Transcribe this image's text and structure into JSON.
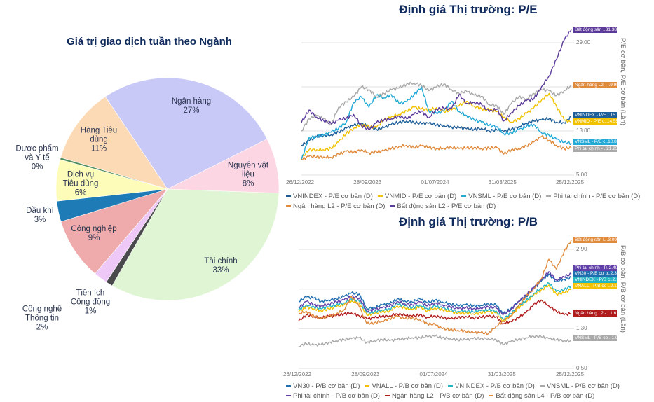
{
  "chart_data": [
    {
      "type": "pie",
      "title": "Giá trị giao dịch tuần theo Ngành",
      "slices": [
        {
          "name": "Tài chính",
          "value": 33,
          "label": "33%",
          "color": "#dff5d4"
        },
        {
          "name": "Tiện ích Cộng đồng",
          "value": 1,
          "label": "1%",
          "color": "#4a4a4c"
        },
        {
          "name": "Công nghệ Thông tin",
          "value": 2,
          "label": "2%",
          "color": "#eec8f6"
        },
        {
          "name": "Công nghiệp",
          "value": 9,
          "label": "9%",
          "color": "#efabab"
        },
        {
          "name": "Dầu khí",
          "value": 3,
          "label": "3%",
          "color": "#1f7bb5"
        },
        {
          "name": "Dịch vụ Tiêu dùng",
          "value": 6,
          "label": "6%",
          "color": "#fdfdb9"
        },
        {
          "name": "Dược phẩm và Y tế",
          "value": 0,
          "label": "0%",
          "color": "#4d8c5c"
        },
        {
          "name": "Hàng Tiêu dùng",
          "value": 11,
          "label": "11%",
          "color": "#fddab6"
        },
        {
          "name": "Ngân hàng",
          "value": 27,
          "label": "27%",
          "color": "#c9c9f8"
        },
        {
          "name": "Nguyên vật liệu",
          "value": 8,
          "label": "8%",
          "color": "#fdd6e4"
        }
      ]
    },
    {
      "type": "line",
      "title": "Định giá Thị trường: P/E",
      "ylabel": "P/E cơ bản, P/E cơ bản (Lần)",
      "yticks": [
        "5.00",
        "13.00",
        "29.00"
      ],
      "ylim": [
        5,
        33
      ],
      "grid": [
        5,
        13,
        21,
        29
      ],
      "xticks": [
        "26/12/2022",
        "28/09/2023",
        "01/07/2024",
        "31/03/2025",
        "25/12/2025"
      ],
      "x": [
        "2022-12-26",
        "2023-01-26",
        "2023-02-26",
        "2023-03-26",
        "2023-04-26",
        "2023-05-26",
        "2023-06-26",
        "2023-07-26",
        "2023-08-26",
        "2023-09-26",
        "2023-10-26",
        "2023-11-26",
        "2023-12-26",
        "2024-01-26",
        "2024-02-26",
        "2024-03-26",
        "2024-04-26",
        "2024-05-26",
        "2024-06-26",
        "2024-07-26",
        "2024-08-26",
        "2024-09-26",
        "2024-10-26",
        "2024-11-26",
        "2024-12-26",
        "2025-01-26",
        "2025-02-26",
        "2025-03-26",
        "2025-04-26",
        "2025-05-26",
        "2025-06-26",
        "2025-07-26",
        "2025-08-26",
        "2025-09-26",
        "2025-10-26",
        "2025-11-26",
        "2025-12-25"
      ],
      "series": [
        {
          "name": "VNINDEX - P/E cơ bản (D)",
          "color": "#1f5f9a",
          "tag": "VNINDEX - P/E ..",
          "last": "15.54",
          "values": [
            10.4,
            11.2,
            12.0,
            12.2,
            12.3,
            12.8,
            13.5,
            14.0,
            14.4,
            13.8,
            13.3,
            13.6,
            14.2,
            14.6,
            14.8,
            14.6,
            14.3,
            14.4,
            14.1,
            14.0,
            13.7,
            13.6,
            13.4,
            13.3,
            13.5,
            13.0,
            13.2,
            12.9,
            13.3,
            13.8,
            14.4,
            14.8,
            15.0,
            15.2,
            14.6,
            14.5,
            15.54
          ]
        },
        {
          "name": "VNMID - P/E cơ bản (D)",
          "color": "#f2c200",
          "tag": "VNMID - P/E c..",
          "last": "14.55",
          "values": [
            8.0,
            9.6,
            9.6,
            9.6,
            9.8,
            11.0,
            12.5,
            13.5,
            14.2,
            13.8,
            13.6,
            15.0,
            15.6,
            16.0,
            16.6,
            17.3,
            17.0,
            16.8,
            17.2,
            16.5,
            16.8,
            17.6,
            18.4,
            17.5,
            17.0,
            16.8,
            16.5,
            15.5,
            14.6,
            15.2,
            16.2,
            17.2,
            18.6,
            19.8,
            17.5,
            15.0,
            14.55
          ]
        },
        {
          "name": "VNSML - P/E cơ bản (D)",
          "color": "#22a9d6",
          "tag": "VNSML - P/E c..",
          "last": "10.82",
          "values": [
            7.8,
            11.8,
            12.0,
            12.2,
            12.8,
            13.5,
            14.6,
            18.2,
            19.2,
            17.3,
            19.5,
            19.0,
            19.6,
            18.0,
            18.3,
            19.5,
            21.0,
            16.6,
            16.2,
            16.6,
            18.4,
            16.5,
            15.8,
            15.0,
            14.6,
            14.0,
            13.8,
            12.5,
            12.6,
            13.2,
            13.8,
            14.2,
            12.7,
            12.2,
            11.5,
            10.9,
            10.82
          ]
        },
        {
          "name": "Phi tài chính - P/E cơ bản (D)",
          "color": "#a9a9a9",
          "tag": "Phi tài chính - ..",
          "last": "21.25",
          "values": [
            13.0,
            15.2,
            15.8,
            15.2,
            14.2,
            17.3,
            18.3,
            19.2,
            21.0,
            20.5,
            19.2,
            19.8,
            20.5,
            20.8,
            21.5,
            21.7,
            21.3,
            20.3,
            21.0,
            21.5,
            20.5,
            19.8,
            20.2,
            19.5,
            19.3,
            17.8,
            17.6,
            16.0,
            18.0,
            19.2,
            18.8,
            19.8,
            20.5,
            20.3,
            19.4,
            20.3,
            21.25
          ]
        },
        {
          "name": "Ngân hàng L2 - P/E cơ bản (D)",
          "color": "#e08a3c",
          "tag": "Ngân hàng L2 - ..",
          "last": "9.95",
          "values": [
            7.8,
            8.4,
            8.3,
            8.3,
            8.2,
            8.8,
            9.3,
            9.1,
            9.6,
            9.0,
            9.2,
            9.4,
            9.8,
            10.2,
            10.4,
            10.0,
            10.3,
            10.0,
            9.8,
            9.9,
            10.0,
            9.8,
            9.9,
            10.0,
            9.8,
            9.9,
            10.0,
            8.8,
            9.6,
            9.8,
            10.3,
            11.0,
            12.0,
            11.3,
            10.4,
            9.8,
            9.95
          ]
        },
        {
          "name": "Bất động sản L2 - P/E cơ bản (D)",
          "color": "#5b3a9a",
          "tag": "Bất động sản ..",
          "last": "31.38",
          "values": [
            14.5,
            16.8,
            15.5,
            14.9,
            14.3,
            15.0,
            15.3,
            16.0,
            14.0,
            13.2,
            14.5,
            15.0,
            15.2,
            15.7,
            15.2,
            16.0,
            16.6,
            15.4,
            17.0,
            17.1,
            17.0,
            19.6,
            18.0,
            18.2,
            17.8,
            16.5,
            17.0,
            14.8,
            16.3,
            17.6,
            18.5,
            18.8,
            21.0,
            23.0,
            26.0,
            29.5,
            31.38
          ]
        }
      ]
    },
    {
      "type": "line",
      "title": "Định giá Thị trường: P/B",
      "ylabel": "P/B cơ bản, P/B cơ bản (Lần)",
      "yticks": [
        "0.50",
        "1.30",
        "2.90"
      ],
      "ylim": [
        0.5,
        3.2
      ],
      "grid": [
        0.5,
        1.3,
        2.1,
        2.9
      ],
      "xticks": [
        "26/12/2022",
        "28/09/2023",
        "01/07/2024",
        "31/03/2025",
        "25/12/2025"
      ],
      "x": [
        "2022-12-26",
        "2023-01-26",
        "2023-02-26",
        "2023-03-26",
        "2023-04-26",
        "2023-05-26",
        "2023-06-26",
        "2023-07-26",
        "2023-08-26",
        "2023-09-26",
        "2023-10-26",
        "2023-11-26",
        "2023-12-26",
        "2024-01-26",
        "2024-02-26",
        "2024-03-26",
        "2024-04-26",
        "2024-05-26",
        "2024-06-26",
        "2024-07-26",
        "2024-08-26",
        "2024-09-26",
        "2024-10-26",
        "2024-11-26",
        "2024-12-26",
        "2025-01-26",
        "2025-02-26",
        "2025-03-26",
        "2025-04-26",
        "2025-05-26",
        "2025-06-26",
        "2025-07-26",
        "2025-08-26",
        "2025-09-26",
        "2025-10-26",
        "2025-11-26",
        "2025-12-25"
      ],
      "series": [
        {
          "name": "VN30 - P/B cơ bản (D)",
          "color": "#1f6fb0",
          "tag": "VN30 - P/B cơ b..",
          "last": "2.33",
          "values": [
            1.85,
            1.94,
            1.92,
            1.85,
            1.88,
            1.9,
            1.95,
            2.02,
            2.0,
            1.71,
            1.72,
            1.78,
            1.8,
            1.9,
            1.86,
            1.84,
            1.9,
            1.82,
            1.88,
            1.84,
            1.8,
            1.76,
            1.78,
            1.76,
            1.77,
            1.8,
            1.78,
            1.6,
            1.7,
            1.85,
            1.95,
            2.1,
            2.25,
            2.4,
            2.25,
            2.3,
            2.33
          ]
        },
        {
          "name": "VNALL - P/B cơ bản (D)",
          "color": "#f2c200",
          "tag": "VNALL - P/B co ..",
          "last": "2.10",
          "values": [
            1.64,
            1.74,
            1.7,
            1.66,
            1.7,
            1.74,
            1.78,
            1.86,
            1.82,
            1.58,
            1.6,
            1.64,
            1.66,
            1.76,
            1.72,
            1.68,
            1.74,
            1.66,
            1.72,
            1.68,
            1.64,
            1.61,
            1.62,
            1.6,
            1.62,
            1.64,
            1.62,
            1.46,
            1.56,
            1.72,
            1.83,
            1.97,
            2.08,
            2.18,
            2.0,
            2.02,
            2.1
          ]
        },
        {
          "name": "VNINDEX - P/B cơ bản (D)",
          "color": "#26b5c5",
          "tag": "VNINDEX - P/B c..",
          "last": "2.17",
          "values": [
            1.68,
            1.78,
            1.74,
            1.7,
            1.74,
            1.78,
            1.82,
            1.9,
            1.86,
            1.62,
            1.64,
            1.68,
            1.7,
            1.8,
            1.76,
            1.72,
            1.78,
            1.7,
            1.76,
            1.72,
            1.68,
            1.65,
            1.66,
            1.64,
            1.66,
            1.68,
            1.66,
            1.5,
            1.6,
            1.75,
            1.86,
            2.0,
            2.12,
            2.22,
            2.05,
            2.08,
            2.17
          ]
        },
        {
          "name": "VNSML - P/B cơ bản (D)",
          "color": "#a9a9a9",
          "tag": "VNSML - P/B co ..",
          "last": "1.05",
          "values": [
            0.95,
            1.0,
            0.97,
            0.98,
            1.02,
            1.06,
            1.08,
            1.1,
            1.12,
            1.02,
            1.06,
            1.08,
            1.06,
            1.08,
            1.1,
            1.12,
            1.12,
            1.14,
            1.15,
            1.12,
            1.1,
            1.08,
            1.08,
            1.1,
            1.1,
            1.1,
            1.08,
            0.98,
            1.04,
            1.08,
            1.12,
            1.15,
            1.14,
            1.1,
            1.08,
            1.06,
            1.05
          ]
        },
        {
          "name": "Phi tài chính - P/B cơ bản (D)",
          "color": "#6040a8",
          "tag": "Phi tài chính - P..",
          "last": "2.40",
          "values": [
            1.72,
            1.85,
            1.78,
            1.76,
            1.8,
            1.84,
            1.88,
            1.95,
            1.92,
            1.66,
            1.68,
            1.72,
            1.75,
            1.85,
            1.8,
            1.78,
            1.84,
            1.76,
            1.82,
            1.78,
            1.74,
            1.7,
            1.72,
            1.7,
            1.72,
            1.74,
            1.72,
            1.58,
            1.68,
            1.85,
            1.98,
            2.12,
            2.28,
            2.45,
            2.28,
            2.35,
            2.4
          ]
        },
        {
          "name": "Ngân hàng L2 - P/B cơ bản (D)",
          "color": "#b01c1c",
          "tag": "Ngân hàng L2 - ..",
          "last": "1.61",
          "values": [
            1.45,
            1.58,
            1.54,
            1.52,
            1.55,
            1.56,
            1.6,
            1.62,
            1.56,
            1.5,
            1.52,
            1.55,
            1.56,
            1.6,
            1.57,
            1.55,
            1.58,
            1.53,
            1.56,
            1.52,
            1.5,
            1.52,
            1.55,
            1.52,
            1.53,
            1.55,
            1.54,
            1.4,
            1.45,
            1.52,
            1.62,
            1.78,
            1.88,
            1.76,
            1.65,
            1.58,
            1.61
          ]
        },
        {
          "name": "Bất động sản L4 - P/B cơ bản (D)",
          "color": "#e08a3c",
          "tag": "Bất động sản L..",
          "last": "3.09",
          "values": [
            1.6,
            1.65,
            1.55,
            1.5,
            1.55,
            1.6,
            1.68,
            1.95,
            1.75,
            1.4,
            1.42,
            1.45,
            1.5,
            1.55,
            1.5,
            1.52,
            1.48,
            1.4,
            1.38,
            1.3,
            1.28,
            1.27,
            1.25,
            1.22,
            1.22,
            1.2,
            1.35,
            1.45,
            1.55,
            1.75,
            1.95,
            2.1,
            2.3,
            2.7,
            2.5,
            2.85,
            3.09
          ]
        }
      ]
    }
  ]
}
